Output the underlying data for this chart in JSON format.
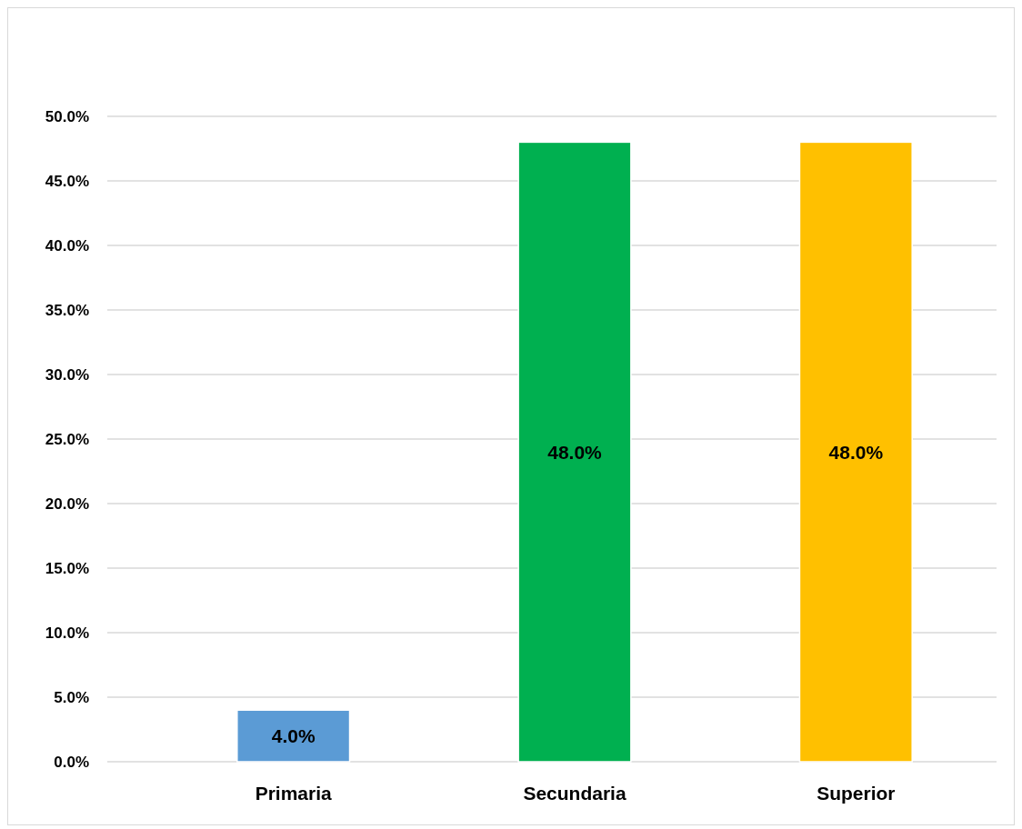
{
  "chart_data": {
    "type": "bar",
    "categories": [
      "Primaria",
      "Secundaria",
      "Superior"
    ],
    "values": [
      4,
      48,
      48
    ],
    "colors": [
      "#5b9bd5",
      "#00b050",
      "#ffc000"
    ],
    "value_labels": [
      "4.0%",
      "48.0%",
      "48.0%"
    ],
    "ylim": [
      0,
      50
    ],
    "yticks": [
      {
        "value": 0,
        "label": "0.0%"
      },
      {
        "value": 5,
        "label": "5.0%"
      },
      {
        "value": 10,
        "label": "10.0%"
      },
      {
        "value": 15,
        "label": "15.0%"
      },
      {
        "value": 20,
        "label": "20.0%"
      },
      {
        "value": 25,
        "label": "25.0%"
      },
      {
        "value": 30,
        "label": "30.0%"
      },
      {
        "value": 35,
        "label": "35.0%"
      },
      {
        "value": 40,
        "label": "40.0%"
      },
      {
        "value": 45,
        "label": "45.0%"
      },
      {
        "value": 50,
        "label": "50.0%"
      }
    ],
    "grid": "y"
  }
}
